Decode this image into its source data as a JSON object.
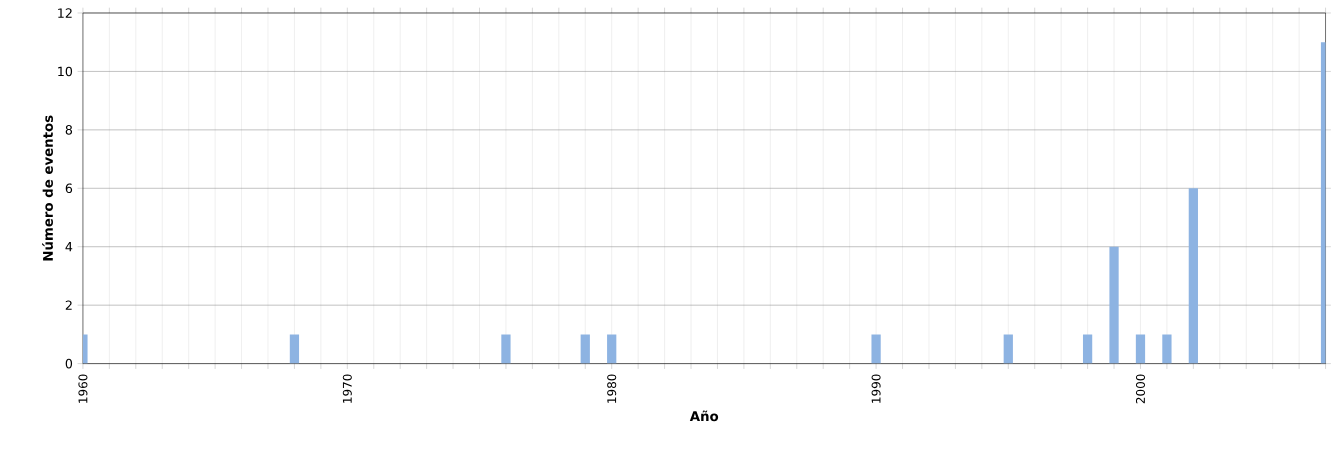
{
  "chart_data": {
    "type": "bar",
    "xlabel": "Año",
    "ylabel": "Número de eventos",
    "color": "#8db3e2",
    "x": [
      1960,
      1968,
      1976,
      1979,
      1980,
      1990,
      1995,
      1998,
      1999,
      2000,
      2001,
      2002,
      2007
    ],
    "values": [
      1,
      1,
      1,
      1,
      1,
      1,
      1,
      1,
      4,
      1,
      1,
      6,
      11
    ],
    "xlim": [
      1960,
      2007
    ],
    "ylim": [
      0,
      12
    ],
    "yticks": [
      0,
      2,
      4,
      6,
      8,
      10,
      12
    ],
    "xticks": [
      1960,
      {
        "value": 1961,
        "label": null
      },
      {
        "value": 1962,
        "label": null
      },
      {
        "value": 1963,
        "label": null
      },
      {
        "value": 1964,
        "label": null
      },
      {
        "value": 1965,
        "label": null
      },
      {
        "value": 1966,
        "label": null
      },
      {
        "value": 1967,
        "label": null
      },
      {
        "value": 1968,
        "label": null
      },
      {
        "value": 1969,
        "label": null
      },
      1970,
      {
        "value": 1971,
        "label": null
      },
      {
        "value": 1972,
        "label": null
      },
      {
        "value": 1973,
        "label": null
      },
      {
        "value": 1974,
        "label": null
      },
      {
        "value": 1975,
        "label": null
      },
      {
        "value": 1976,
        "label": null
      },
      {
        "value": 1977,
        "label": null
      },
      {
        "value": 1978,
        "label": null
      },
      {
        "value": 1979,
        "label": null
      },
      1980,
      {
        "value": 1981,
        "label": null
      },
      {
        "value": 1982,
        "label": null
      },
      {
        "value": 1983,
        "label": null
      },
      {
        "value": 1984,
        "label": null
      },
      {
        "value": 1985,
        "label": null
      },
      {
        "value": 1986,
        "label": null
      },
      {
        "value": 1987,
        "label": null
      },
      {
        "value": 1988,
        "label": null
      },
      {
        "value": 1989,
        "label": null
      },
      1990,
      {
        "value": 1991,
        "label": null
      },
      {
        "value": 1992,
        "label": null
      },
      {
        "value": 1993,
        "label": null
      },
      {
        "value": 1994,
        "label": null
      },
      {
        "value": 1995,
        "label": null
      },
      {
        "value": 1996,
        "label": null
      },
      {
        "value": 1997,
        "label": null
      },
      {
        "value": 1998,
        "label": null
      },
      {
        "value": 1999,
        "label": null
      },
      2000,
      {
        "value": 2001,
        "label": null
      },
      {
        "value": 2002,
        "label": null
      },
      {
        "value": 2003,
        "label": null
      },
      {
        "value": 2004,
        "label": null
      },
      {
        "value": 2005,
        "label": null
      },
      {
        "value": 2006,
        "label": null
      },
      {
        "value": 2007,
        "label": null
      }
    ],
    "grid": true
  }
}
